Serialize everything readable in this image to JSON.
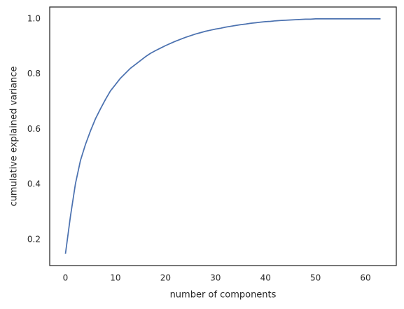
{
  "chart_data": {
    "type": "line",
    "xlabel": "number of components",
    "ylabel": "cumulative explained variance",
    "x": [
      0,
      1,
      2,
      3,
      4,
      5,
      6,
      7,
      8,
      9,
      10,
      11,
      12,
      13,
      14,
      15,
      16,
      17,
      18,
      19,
      20,
      21,
      22,
      23,
      24,
      25,
      26,
      27,
      28,
      29,
      30,
      31,
      32,
      33,
      34,
      35,
      36,
      37,
      38,
      39,
      40,
      41,
      42,
      43,
      44,
      45,
      46,
      47,
      48,
      49,
      50,
      51,
      52,
      53,
      54,
      55,
      56,
      57,
      58,
      59,
      60,
      61,
      62,
      63
    ],
    "values": [
      0.149,
      0.285,
      0.403,
      0.487,
      0.545,
      0.594,
      0.638,
      0.674,
      0.708,
      0.739,
      0.762,
      0.785,
      0.803,
      0.821,
      0.835,
      0.849,
      0.863,
      0.875,
      0.885,
      0.894,
      0.903,
      0.911,
      0.919,
      0.926,
      0.933,
      0.939,
      0.945,
      0.95,
      0.955,
      0.959,
      0.963,
      0.966,
      0.97,
      0.973,
      0.976,
      0.979,
      0.981,
      0.984,
      0.986,
      0.988,
      0.99,
      0.991,
      0.993,
      0.994,
      0.995,
      0.996,
      0.997,
      0.998,
      0.999,
      0.999,
      1,
      1,
      1,
      1,
      1,
      1,
      1,
      1,
      1,
      1,
      1,
      1,
      1,
      1
    ],
    "color": "#4c72b0",
    "xlim": [
      -3.15,
      66.15
    ],
    "xticks": [
      0,
      10,
      20,
      30,
      40,
      50,
      60
    ],
    "ylim": [
      0.106,
      1.043
    ],
    "yticks": [
      0.2,
      0.4,
      0.6,
      0.8,
      {
        "value": 1,
        "label": "1.0"
      }
    ],
    "grid": false
  }
}
